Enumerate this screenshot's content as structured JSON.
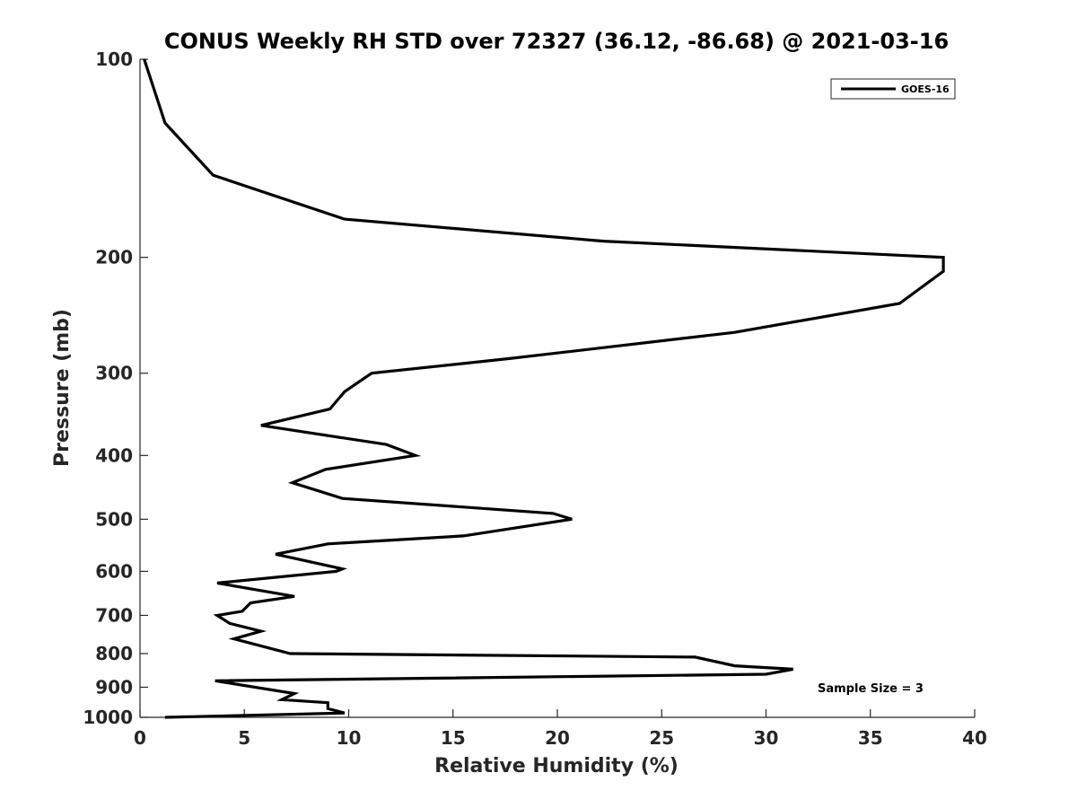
{
  "chart_data": {
    "type": "line",
    "title": "CONUS Weekly RH STD over 72327 (36.12, -86.68) @ 2021-03-16",
    "xlabel": "Relative Humidity (%)",
    "ylabel": "Pressure (mb)",
    "xlim": [
      0,
      40
    ],
    "ylim": [
      100,
      1000
    ],
    "y_scale": "log",
    "y_reversed": true,
    "x_ticks": [
      0,
      5,
      10,
      15,
      20,
      25,
      30,
      35,
      40
    ],
    "y_ticks": [
      100,
      200,
      300,
      400,
      500,
      600,
      700,
      800,
      900,
      1000
    ],
    "grid": false,
    "legend_position": "top-right",
    "annotation": "Sample Size = 3",
    "series": [
      {
        "name": "GOES-16",
        "color": "#000000",
        "points": [
          [
            0.2,
            100
          ],
          [
            1.2,
            125
          ],
          [
            3.5,
            150
          ],
          [
            9.8,
            175
          ],
          [
            22.2,
            189
          ],
          [
            38.5,
            200
          ],
          [
            38.5,
            210
          ],
          [
            36.4,
            235
          ],
          [
            28.5,
            260
          ],
          [
            17.7,
            285
          ],
          [
            11.1,
            300
          ],
          [
            9.8,
            320
          ],
          [
            9.1,
            340
          ],
          [
            5.8,
            360
          ],
          [
            11.8,
            385
          ],
          [
            13.2,
            400
          ],
          [
            8.9,
            420
          ],
          [
            7.3,
            440
          ],
          [
            9.7,
            465
          ],
          [
            19.8,
            490
          ],
          [
            20.7,
            500
          ],
          [
            15.5,
            530
          ],
          [
            9.0,
            545
          ],
          [
            6.5,
            565
          ],
          [
            9.7,
            595
          ],
          [
            9.4,
            600
          ],
          [
            3.7,
            625
          ],
          [
            7.4,
            655
          ],
          [
            5.3,
            670
          ],
          [
            4.9,
            690
          ],
          [
            3.7,
            700
          ],
          [
            4.3,
            720
          ],
          [
            5.8,
            740
          ],
          [
            4.5,
            760
          ],
          [
            7.2,
            800
          ],
          [
            26.6,
            810
          ],
          [
            28.5,
            835
          ],
          [
            31.3,
            845
          ],
          [
            30.0,
            860
          ],
          [
            3.6,
            880
          ],
          [
            7.4,
            920
          ],
          [
            6.8,
            940
          ],
          [
            9.0,
            950
          ],
          [
            9.0,
            970
          ],
          [
            9.8,
            985
          ],
          [
            1.2,
            1000
          ]
        ]
      }
    ]
  }
}
